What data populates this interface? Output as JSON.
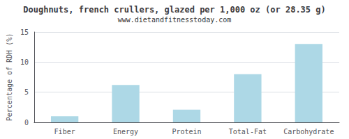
{
  "chart_data": {
    "type": "bar",
    "title": "Doughnuts, french crullers, glazed per 1,000 oz (or 28.35 g)",
    "subtitle": "www.dietandfitnesstoday.com",
    "categories": [
      "Fiber",
      "Energy",
      "Protein",
      "Total-Fat",
      "Carbohydrate"
    ],
    "values": [
      1.0,
      6.2,
      2.1,
      8.0,
      13.0
    ],
    "color": "#add8e6",
    "ylabel": "Percentage of RDH (%)",
    "ylim": [
      0,
      15
    ],
    "yticks": [
      0,
      5,
      10,
      15
    ],
    "grid": true
  }
}
